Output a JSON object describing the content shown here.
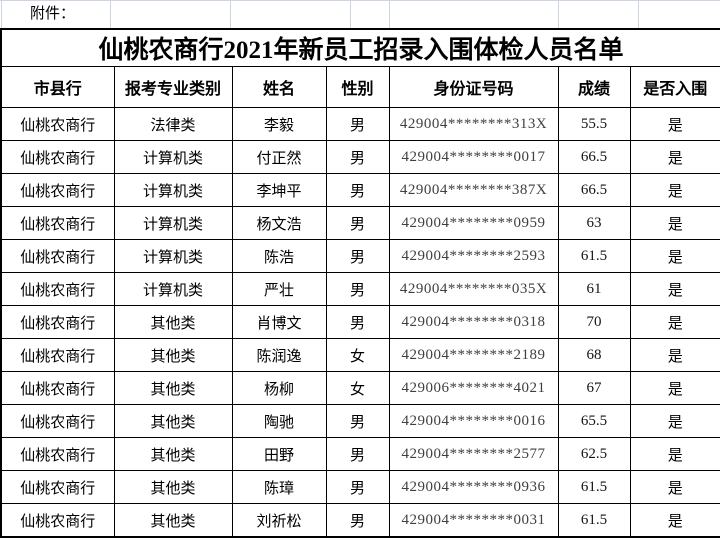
{
  "page": {
    "attachment_label": "附件：",
    "title": "仙桃农商行2021年新员工招录入围体检人员名单"
  },
  "table": {
    "headers": [
      "市县行",
      "报考专业类别",
      "姓名",
      "性别",
      "身份证号码",
      "成绩",
      "是否入围"
    ],
    "rows": [
      [
        "仙桃农商行",
        "法律类",
        "李毅",
        "男",
        "429004********313X",
        "55.5",
        "是"
      ],
      [
        "仙桃农商行",
        "计算机类",
        "付正然",
        "男",
        "429004********0017",
        "66.5",
        "是"
      ],
      [
        "仙桃农商行",
        "计算机类",
        "李坤平",
        "男",
        "429004********387X",
        "66.5",
        "是"
      ],
      [
        "仙桃农商行",
        "计算机类",
        "杨文浩",
        "男",
        "429004********0959",
        "63",
        "是"
      ],
      [
        "仙桃农商行",
        "计算机类",
        "陈浩",
        "男",
        "429004********2593",
        "61.5",
        "是"
      ],
      [
        "仙桃农商行",
        "计算机类",
        "严壮",
        "男",
        "429004********035X",
        "61",
        "是"
      ],
      [
        "仙桃农商行",
        "其他类",
        "肖博文",
        "男",
        "429004********0318",
        "70",
        "是"
      ],
      [
        "仙桃农商行",
        "其他类",
        "陈润逸",
        "女",
        "429004********2189",
        "68",
        "是"
      ],
      [
        "仙桃农商行",
        "其他类",
        "杨柳",
        "女",
        "429006********4021",
        "67",
        "是"
      ],
      [
        "仙桃农商行",
        "其他类",
        "陶驰",
        "男",
        "429004********0016",
        "65.5",
        "是"
      ],
      [
        "仙桃农商行",
        "其他类",
        "田野",
        "男",
        "429004********2577",
        "62.5",
        "是"
      ],
      [
        "仙桃农商行",
        "其他类",
        "陈璋",
        "男",
        "429004********0936",
        "61.5",
        "是"
      ],
      [
        "仙桃农商行",
        "其他类",
        "刘祈松",
        "男",
        "429004********0031",
        "61.5",
        "是"
      ]
    ]
  },
  "colors": {
    "table_border": "#000000",
    "gridline": "#ccd4e2",
    "background": "#ffffff",
    "text": "#000000",
    "id_text": "#3f3f3f"
  }
}
